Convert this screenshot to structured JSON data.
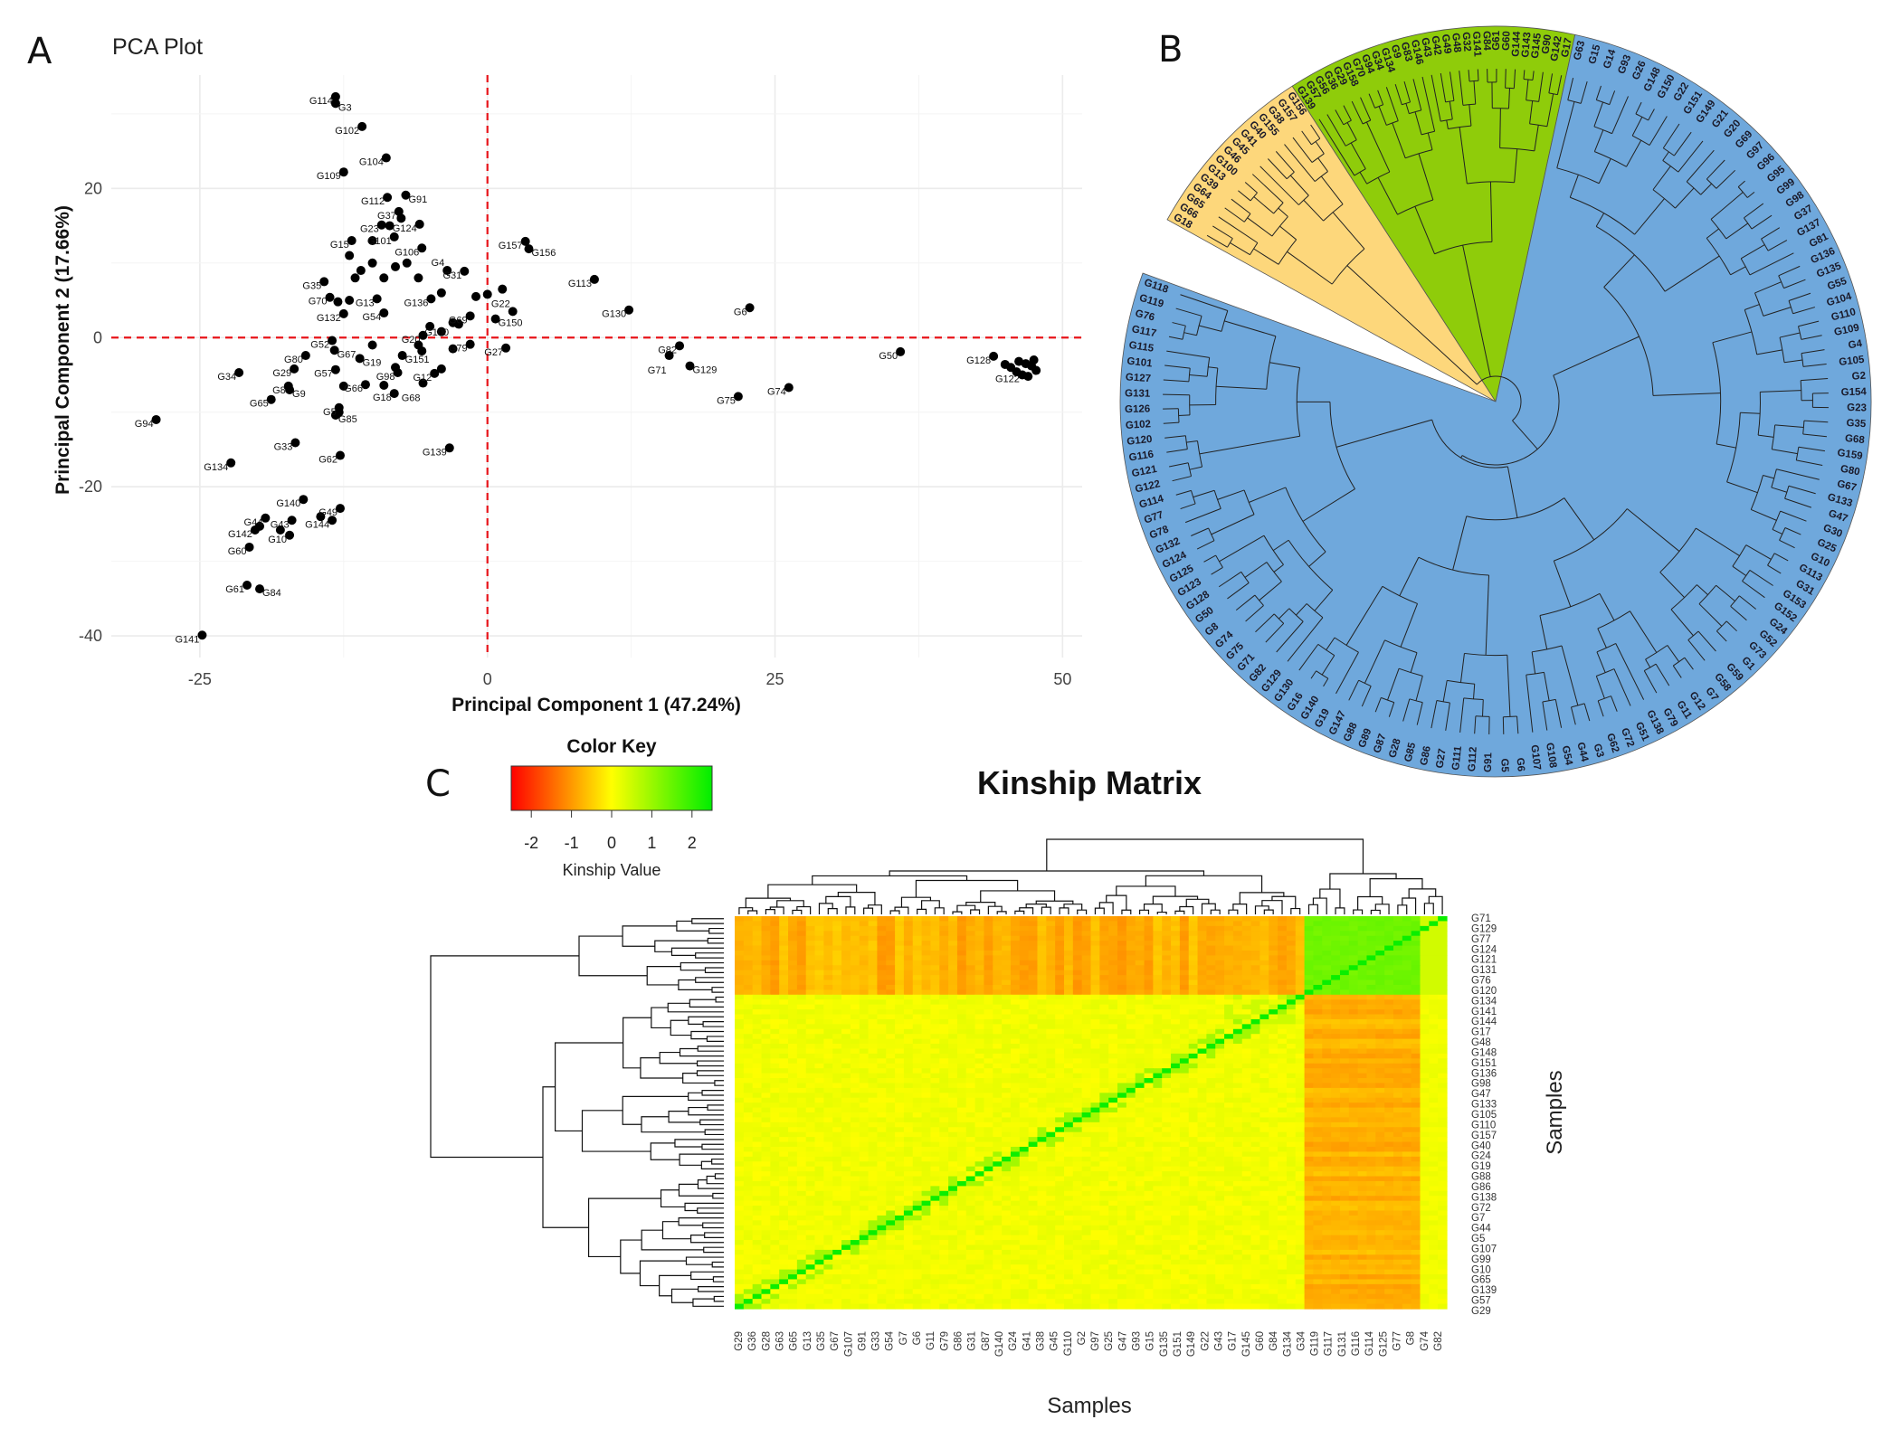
{
  "chart_data": [
    {
      "type": "scatter",
      "panel": "A",
      "title": "PCA Plot",
      "xlabel": "Principal Component 1 (47.24%)",
      "ylabel": "Principal Component 2 (17.66%)",
      "xlim": [
        -32.7,
        51.7
      ],
      "ylim": [
        -42.9,
        35.2
      ],
      "xticks": [
        -25,
        0,
        25,
        50
      ],
      "yticks": [
        -40,
        -20,
        0,
        20
      ],
      "grid": true,
      "reference_lines": {
        "x": 0,
        "y": 0,
        "color": "#e8141a",
        "style": "dashed"
      },
      "point_color": "#000000",
      "points": [
        {
          "label": "G114",
          "x": -13.2,
          "y": 32.3
        },
        {
          "label": "G3",
          "x": -13.2,
          "y": 31.4
        },
        {
          "label": "G102",
          "x": -10.9,
          "y": 28.3
        },
        {
          "label": "G104",
          "x": -8.8,
          "y": 24.1
        },
        {
          "label": "G109",
          "x": -12.5,
          "y": 22.2
        },
        {
          "label": "G112",
          "x": -8.7,
          "y": 18.8
        },
        {
          "label": "G91",
          "x": -7.1,
          "y": 19.1
        },
        {
          "label": "G37",
          "x": -7.7,
          "y": 16.9
        },
        {
          "label": "G124",
          "x": -5.9,
          "y": 15.2
        },
        {
          "label": "G23",
          "x": -9.2,
          "y": 15.1
        },
        {
          "label": "G15",
          "x": -11.8,
          "y": 13.0
        },
        {
          "label": "G101",
          "x": -8.1,
          "y": 13.5
        },
        {
          "label": "G106",
          "x": -5.7,
          "y": 12.0
        },
        {
          "label": "G157",
          "x": 3.3,
          "y": 12.9
        },
        {
          "label": "G156",
          "x": 3.6,
          "y": 11.9
        },
        {
          "label": "G113",
          "x": 9.3,
          "y": 7.8
        },
        {
          "label": "G130",
          "x": 12.3,
          "y": 3.7
        },
        {
          "label": "G6",
          "x": 22.8,
          "y": 4.0
        },
        {
          "label": "G31",
          "x": -2.0,
          "y": 8.9
        },
        {
          "label": "G4",
          "x": -3.5,
          "y": 9.0
        },
        {
          "label": "G35",
          "x": -14.2,
          "y": 7.5
        },
        {
          "label": "G70",
          "x": -13.7,
          "y": 5.4
        },
        {
          "label": "G136",
          "x": -4.9,
          "y": 5.2
        },
        {
          "label": "G13",
          "x": -9.6,
          "y": 5.2
        },
        {
          "label": "G132",
          "x": -12.5,
          "y": 3.2
        },
        {
          "label": "G54",
          "x": -9.0,
          "y": 3.3
        },
        {
          "label": "G69",
          "x": -1.5,
          "y": 2.9
        },
        {
          "label": "G150",
          "x": 0.7,
          "y": 2.5
        },
        {
          "label": "G22",
          "x": 2.2,
          "y": 3.5
        },
        {
          "label": "G27",
          "x": 1.6,
          "y": -1.4
        },
        {
          "label": "G79",
          "x": -1.5,
          "y": -0.9
        },
        {
          "label": "G20",
          "x": -5.6,
          "y": 0.3
        },
        {
          "label": "G52",
          "x": -13.5,
          "y": -0.4
        },
        {
          "label": "G67",
          "x": -13.3,
          "y": -1.7
        },
        {
          "label": "G80",
          "x": -15.8,
          "y": -2.4
        },
        {
          "label": "G34",
          "x": -21.6,
          "y": -4.7
        },
        {
          "label": "G29",
          "x": -16.8,
          "y": -4.2
        },
        {
          "label": "G8",
          "x": -17.3,
          "y": -6.5
        },
        {
          "label": "G9",
          "x": -17.2,
          "y": -7.0
        },
        {
          "label": "G65",
          "x": -18.8,
          "y": -8.3
        },
        {
          "label": "G57",
          "x": -13.2,
          "y": -4.3
        },
        {
          "label": "G19",
          "x": -11.1,
          "y": -2.8
        },
        {
          "label": "G151",
          "x": -7.4,
          "y": -2.4
        },
        {
          "label": "G100",
          "x": -5.7,
          "y": -1.8
        },
        {
          "label": "G98",
          "x": -7.8,
          "y": -4.7
        },
        {
          "label": "G12",
          "x": -4.6,
          "y": -4.8
        },
        {
          "label": "G68",
          "x": -5.6,
          "y": -6.1
        },
        {
          "label": "G18",
          "x": -8.1,
          "y": -7.5
        },
        {
          "label": "G66",
          "x": -10.6,
          "y": -6.3
        },
        {
          "label": "G5",
          "x": -12.9,
          "y": -9.4
        },
        {
          "label": "G85",
          "x": -13.2,
          "y": -10.4
        },
        {
          "label": "G94",
          "x": -28.8,
          "y": -11.0
        },
        {
          "label": "G33",
          "x": -16.7,
          "y": -14.1
        },
        {
          "label": "G62",
          "x": -12.8,
          "y": -15.8
        },
        {
          "label": "G134",
          "x": -22.3,
          "y": -16.8
        },
        {
          "label": "G139",
          "x": -3.3,
          "y": -14.8
        },
        {
          "label": "G140",
          "x": -16.0,
          "y": -21.7
        },
        {
          "label": "G49",
          "x": -12.8,
          "y": -22.9
        },
        {
          "label": "G44",
          "x": -19.3,
          "y": -24.2
        },
        {
          "label": "G43",
          "x": -17.0,
          "y": -24.5
        },
        {
          "label": "G144",
          "x": -13.5,
          "y": -24.5
        },
        {
          "label": "G142",
          "x": -20.2,
          "y": -25.8
        },
        {
          "label": "G10",
          "x": -17.2,
          "y": -26.5
        },
        {
          "label": "G60",
          "x": -20.7,
          "y": -28.1
        },
        {
          "label": "G61",
          "x": -20.9,
          "y": -33.2
        },
        {
          "label": "G84",
          "x": -19.8,
          "y": -33.7
        },
        {
          "label": "G141",
          "x": -24.8,
          "y": -39.9
        },
        {
          "label": "G82",
          "x": 16.7,
          "y": -1.1
        },
        {
          "label": "G71",
          "x": 15.8,
          "y": -2.4
        },
        {
          "label": "G129",
          "x": 17.6,
          "y": -3.8
        },
        {
          "label": "G75",
          "x": 21.8,
          "y": -7.9
        },
        {
          "label": "G74",
          "x": 26.2,
          "y": -6.7
        },
        {
          "label": "G50",
          "x": 35.9,
          "y": -1.9
        },
        {
          "label": "G128",
          "x": 44.0,
          "y": -2.5
        },
        {
          "label": "G122",
          "x": 46.5,
          "y": -5.0
        },
        {
          "label": "",
          "x": 46.2,
          "y": -3.2
        },
        {
          "label": "",
          "x": 46.8,
          "y": -3.5
        },
        {
          "label": "",
          "x": 47.3,
          "y": -3.8
        },
        {
          "label": "",
          "x": 47.7,
          "y": -4.4
        },
        {
          "label": "",
          "x": 45.5,
          "y": -4.0
        },
        {
          "label": "",
          "x": 46.0,
          "y": -4.6
        },
        {
          "label": "",
          "x": 47.0,
          "y": -5.2
        },
        {
          "label": "",
          "x": 45.0,
          "y": -3.6
        },
        {
          "label": "",
          "x": 47.5,
          "y": -3.0
        },
        {
          "label": "",
          "x": -12,
          "y": 11
        },
        {
          "label": "",
          "x": -10,
          "y": 10
        },
        {
          "label": "",
          "x": -8,
          "y": 9.5
        },
        {
          "label": "",
          "x": -11,
          "y": 9
        },
        {
          "label": "",
          "x": -6,
          "y": 8
        },
        {
          "label": "",
          "x": -7,
          "y": 10
        },
        {
          "label": "",
          "x": -9,
          "y": 8
        },
        {
          "label": "",
          "x": -4,
          "y": 6
        },
        {
          "label": "",
          "x": -3,
          "y": 2
        },
        {
          "label": "",
          "x": -5,
          "y": 1.5
        },
        {
          "label": "",
          "x": -4,
          "y": 0.8
        },
        {
          "label": "",
          "x": -2.5,
          "y": 1.8
        },
        {
          "label": "",
          "x": -6,
          "y": -1
        },
        {
          "label": "",
          "x": -3,
          "y": -1.5
        },
        {
          "label": "",
          "x": -10,
          "y": -1
        },
        {
          "label": "",
          "x": -9,
          "y": -6.4
        },
        {
          "label": "",
          "x": -12.5,
          "y": -6.5
        },
        {
          "label": "",
          "x": -12.9,
          "y": -10
        },
        {
          "label": "",
          "x": -18,
          "y": -25.8
        },
        {
          "label": "",
          "x": -14.5,
          "y": -24
        },
        {
          "label": "",
          "x": -19.8,
          "y": -25.3
        },
        {
          "label": "",
          "x": -1,
          "y": 5.5
        },
        {
          "label": "",
          "x": 0,
          "y": 5.8
        },
        {
          "label": "",
          "x": 1.3,
          "y": 6.5
        },
        {
          "label": "",
          "x": -8.5,
          "y": 15
        },
        {
          "label": "",
          "x": -7.5,
          "y": 16
        },
        {
          "label": "",
          "x": -10,
          "y": 13
        },
        {
          "label": "",
          "x": -11.5,
          "y": 8
        },
        {
          "label": "",
          "x": -13,
          "y": 4.8
        },
        {
          "label": "",
          "x": -12,
          "y": 5
        },
        {
          "label": "",
          "x": -4,
          "y": -4.2
        },
        {
          "label": "",
          "x": -8,
          "y": -4
        }
      ]
    },
    {
      "type": "circular-dendrogram",
      "panel": "B",
      "groups": [
        {
          "color": "#fdd77b",
          "leaves": [
            "G18",
            "G66",
            "G65",
            "G64",
            "G39",
            "G13",
            "G100",
            "G46",
            "G45",
            "G41",
            "G40",
            "G155",
            "G38",
            "G157",
            "G156"
          ]
        },
        {
          "color": "#8fcc0a",
          "leaves": [
            "G139",
            "G57",
            "G56",
            "G36",
            "G29",
            "G158",
            "G70",
            "G94",
            "G34",
            "G134",
            "G9",
            "G83",
            "G146",
            "G43",
            "G42",
            "G49",
            "G48",
            "G32",
            "G141",
            "G84",
            "G61",
            "G60",
            "G144",
            "G143",
            "G145",
            "G90",
            "G142",
            "G17"
          ]
        },
        {
          "color": "#6fa8dc",
          "leaves": [
            "G63",
            "G15",
            "G14",
            "G93",
            "G26",
            "G148",
            "G150",
            "G22",
            "G151",
            "G149",
            "G21",
            "G20",
            "G69",
            "G97",
            "G96",
            "G95",
            "G99",
            "G98",
            "G37",
            "G137",
            "G81",
            "G136",
            "G135",
            "G55",
            "G104",
            "G110",
            "G109",
            "G4",
            "G105",
            "G2",
            "G154",
            "G23",
            "G35",
            "G68",
            "G159",
            "G80",
            "G67",
            "G133",
            "G47",
            "G30",
            "G25",
            "G10",
            "G113",
            "G31",
            "G153",
            "G152",
            "G24",
            "G52",
            "G73",
            "G1",
            "G59",
            "G58",
            "G7",
            "G12",
            "G11",
            "G79",
            "G138",
            "G51",
            "G72",
            "G62",
            "G3",
            "G44",
            "G54",
            "G108",
            "G107",
            "G6",
            "G5",
            "G91",
            "G112",
            "G111",
            "G27",
            "G86",
            "G85",
            "G28",
            "G87",
            "G89",
            "G88",
            "G147",
            "G19",
            "G140",
            "G16",
            "G130",
            "G129",
            "G82",
            "G71",
            "G75",
            "G74",
            "G8",
            "G50",
            "G128",
            "G123",
            "G125",
            "G124",
            "G132",
            "G78",
            "G77",
            "G114",
            "G122",
            "G121",
            "G116",
            "G120",
            "G102",
            "G126",
            "G131",
            "G127",
            "G101",
            "G115",
            "G117",
            "G76",
            "G119",
            "G118"
          ]
        }
      ]
    },
    {
      "type": "heatmap",
      "panel": "C",
      "title": "Kinship Matrix",
      "xlabel": "Samples",
      "ylabel": "Samples",
      "color_key": {
        "title": "Color Key",
        "label": "Kinship Value",
        "range": [
          -2.5,
          2.5
        ],
        "ticks": [
          -2,
          -1,
          0,
          1,
          2
        ],
        "colors": [
          "#ff0000",
          "#ffff00",
          "#00ee00"
        ]
      },
      "row_labels": [
        "G71",
        "G129",
        "G77",
        "G124",
        "G121",
        "G131",
        "G76",
        "G120",
        "G134",
        "G141",
        "G144",
        "G17",
        "G48",
        "G148",
        "G151",
        "G136",
        "G98",
        "G47",
        "G133",
        "G105",
        "G110",
        "G157",
        "G40",
        "G24",
        "G19",
        "G88",
        "G86",
        "G138",
        "G72",
        "G7",
        "G44",
        "G5",
        "G107",
        "G99",
        "G10",
        "G65",
        "G139",
        "G57",
        "G29"
      ],
      "col_labels": [
        "G29",
        "G36",
        "G28",
        "G63",
        "G65",
        "G13",
        "G35",
        "G67",
        "G107",
        "G91",
        "G33",
        "G54",
        "G7",
        "G6",
        "G11",
        "G79",
        "G86",
        "G31",
        "G87",
        "G140",
        "G24",
        "G41",
        "G38",
        "G45",
        "G110",
        "G2",
        "G97",
        "G25",
        "G47",
        "G93",
        "G15",
        "G135",
        "G151",
        "G149",
        "G22",
        "G43",
        "G17",
        "G145",
        "G60",
        "G84",
        "G134",
        "G34",
        "G119",
        "G117",
        "G131",
        "G116",
        "G114",
        "G125",
        "G77",
        "G8",
        "G74",
        "G82"
      ]
    }
  ]
}
